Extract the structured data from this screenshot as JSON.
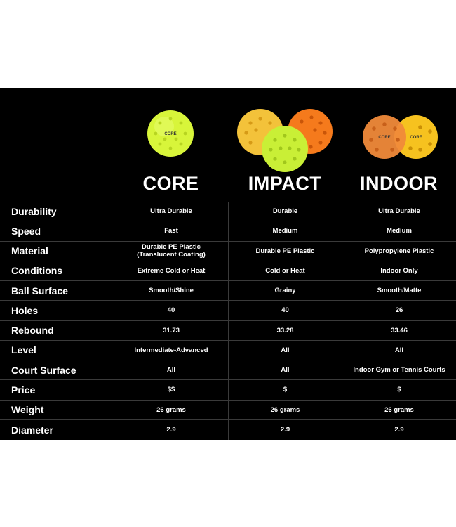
{
  "columns": [
    {
      "name": "CORE",
      "ball_colors": [
        "#d8f53a"
      ]
    },
    {
      "name": "IMPACT",
      "ball_colors": [
        "#f3c23a",
        "#f57a1c",
        "#c9ef36"
      ]
    },
    {
      "name": "INDOOR",
      "ball_colors": [
        "#f08a3a",
        "#f6c21f"
      ]
    }
  ],
  "ball_logo": "CORE",
  "rows": [
    {
      "label": "Durability",
      "values": [
        "Ultra Durable",
        "Durable",
        "Ultra Durable"
      ]
    },
    {
      "label": "Speed",
      "values": [
        "Fast",
        "Medium",
        "Medium"
      ]
    },
    {
      "label": "Material",
      "values": [
        "Durable PE Plastic\n(Translucent Coating)",
        "Durable PE Plastic",
        "Polypropylene Plastic"
      ]
    },
    {
      "label": "Conditions",
      "values": [
        "Extreme Cold or Heat",
        "Cold or Heat",
        "Indoor Only"
      ]
    },
    {
      "label": "Ball Surface",
      "values": [
        "Smooth/Shine",
        "Grainy",
        "Smooth/Matte"
      ]
    },
    {
      "label": "Holes",
      "values": [
        "40",
        "40",
        "26"
      ]
    },
    {
      "label": "Rebound",
      "values": [
        "31.73",
        "33.28",
        "33.46"
      ]
    },
    {
      "label": "Level",
      "values": [
        "Intermediate-Advanced",
        "All",
        "All"
      ]
    },
    {
      "label": "Court Surface",
      "values": [
        "All",
        "All",
        "Indoor Gym or Tennis Courts"
      ]
    },
    {
      "label": "Price",
      "values": [
        "$$",
        "$",
        "$"
      ]
    },
    {
      "label": "Weight",
      "values": [
        "26 grams",
        "26 grams",
        "26 grams"
      ]
    },
    {
      "label": "Diameter",
      "values": [
        "2.9",
        "2.9",
        "2.9"
      ]
    }
  ]
}
